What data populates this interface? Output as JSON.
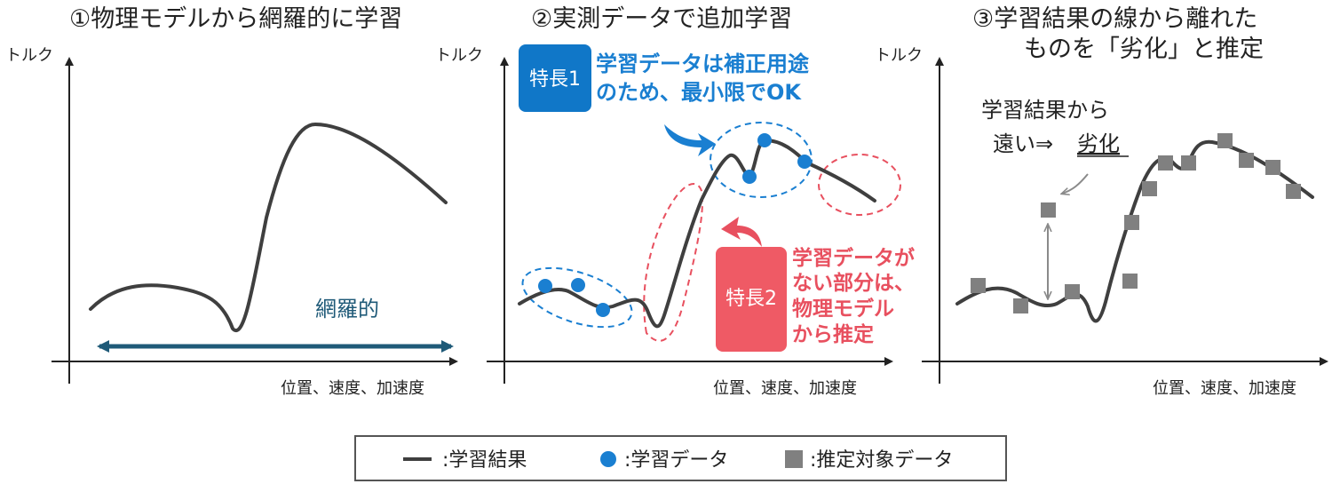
{
  "panels": [
    {
      "title": "①物理モデルから網羅的に学習",
      "ylabel": "トルク",
      "xlabel": "位置、速度、加速度",
      "range_label": "網羅的"
    },
    {
      "title": "②実測データで追加学習",
      "ylabel": "トルク",
      "xlabel": "位置、速度、加速度",
      "feature1": {
        "badge": "特長1",
        "lines": [
          "学習データは補正用途",
          "のため、最小限でOK"
        ]
      },
      "feature2": {
        "badge": "特長2",
        "lines": [
          "学習データが",
          "ない部分は、",
          "物理モデル",
          "から推定"
        ]
      }
    },
    {
      "title_lines": [
        "③学習結果の線から離れた",
        "ものを「劣化」と推定"
      ],
      "ylabel": "トルク",
      "xlabel": "位置、速度、加速度",
      "annotation": {
        "line1": "学習結果から",
        "line2_prefix": "遠い⇒",
        "line2_underlined": "劣化"
      }
    }
  ],
  "legend": {
    "items": [
      {
        "symbol": "line",
        "label": ":学習結果"
      },
      {
        "symbol": "circle",
        "label": ":学習データ"
      },
      {
        "symbol": "square",
        "label": ":推定対象データ"
      }
    ]
  },
  "colors": {
    "curve": "#3f3f3f",
    "axis": "#222222",
    "range_arrow": "#1f5a78",
    "blue": "#1a7fd1",
    "blue_badge": "#1077c8",
    "red": "#e8505f",
    "red_badge": "#ef5a65",
    "square": "#808080",
    "gray_arrow": "#8a8a8a"
  }
}
